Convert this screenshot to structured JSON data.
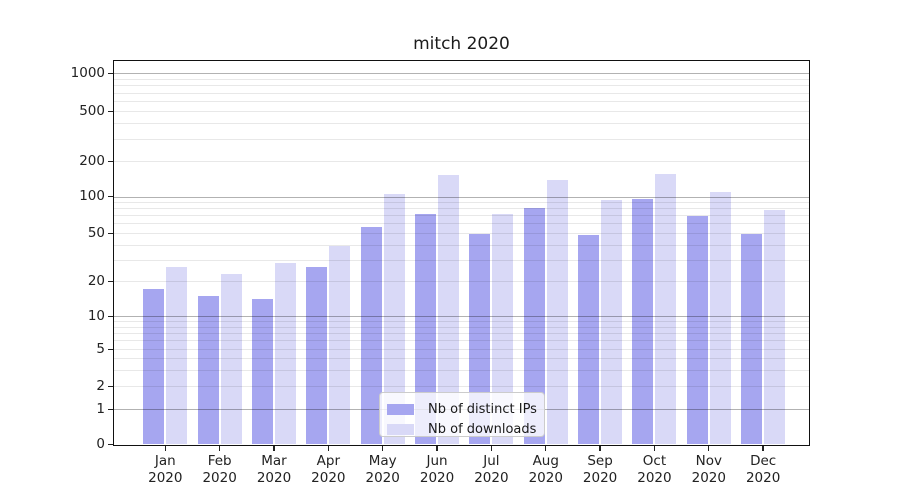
{
  "figure": {
    "title": "mitch 2020"
  },
  "chart_data": {
    "type": "bar",
    "title": "mitch 2020",
    "subtitle": "",
    "xlabel": "",
    "ylabel": "",
    "yscale": "symlog",
    "yticks": [
      0,
      1,
      2,
      5,
      10,
      20,
      50,
      100,
      200,
      500,
      1000
    ],
    "ylim": [
      0,
      1200
    ],
    "grid": true,
    "legend_position": "lower center",
    "categories": [
      {
        "month": "Jan",
        "year": "2020"
      },
      {
        "month": "Feb",
        "year": "2020"
      },
      {
        "month": "Mar",
        "year": "2020"
      },
      {
        "month": "Apr",
        "year": "2020"
      },
      {
        "month": "May",
        "year": "2020"
      },
      {
        "month": "Jun",
        "year": "2020"
      },
      {
        "month": "Jul",
        "year": "2020"
      },
      {
        "month": "Aug",
        "year": "2020"
      },
      {
        "month": "Sep",
        "year": "2020"
      },
      {
        "month": "Oct",
        "year": "2020"
      },
      {
        "month": "Nov",
        "year": "2020"
      },
      {
        "month": "Dec",
        "year": "2020"
      }
    ],
    "series": [
      {
        "name": "Nb of distinct IPs",
        "color": "#a6a6f0",
        "values": [
          17,
          15,
          14,
          26,
          56,
          72,
          49,
          80,
          48,
          96,
          69,
          49
        ]
      },
      {
        "name": "Nb of downloads",
        "color": "#d9d9f7",
        "values": [
          26,
          23,
          28,
          39,
          106,
          153,
          72,
          138,
          94,
          155,
          110,
          77
        ]
      }
    ]
  },
  "colors": {
    "spine": "#111111",
    "tick_text": "#222222",
    "grid_minor": "#e8e8e8",
    "grid_major": "#b2b2b2",
    "legend_border": "#cccccc"
  }
}
